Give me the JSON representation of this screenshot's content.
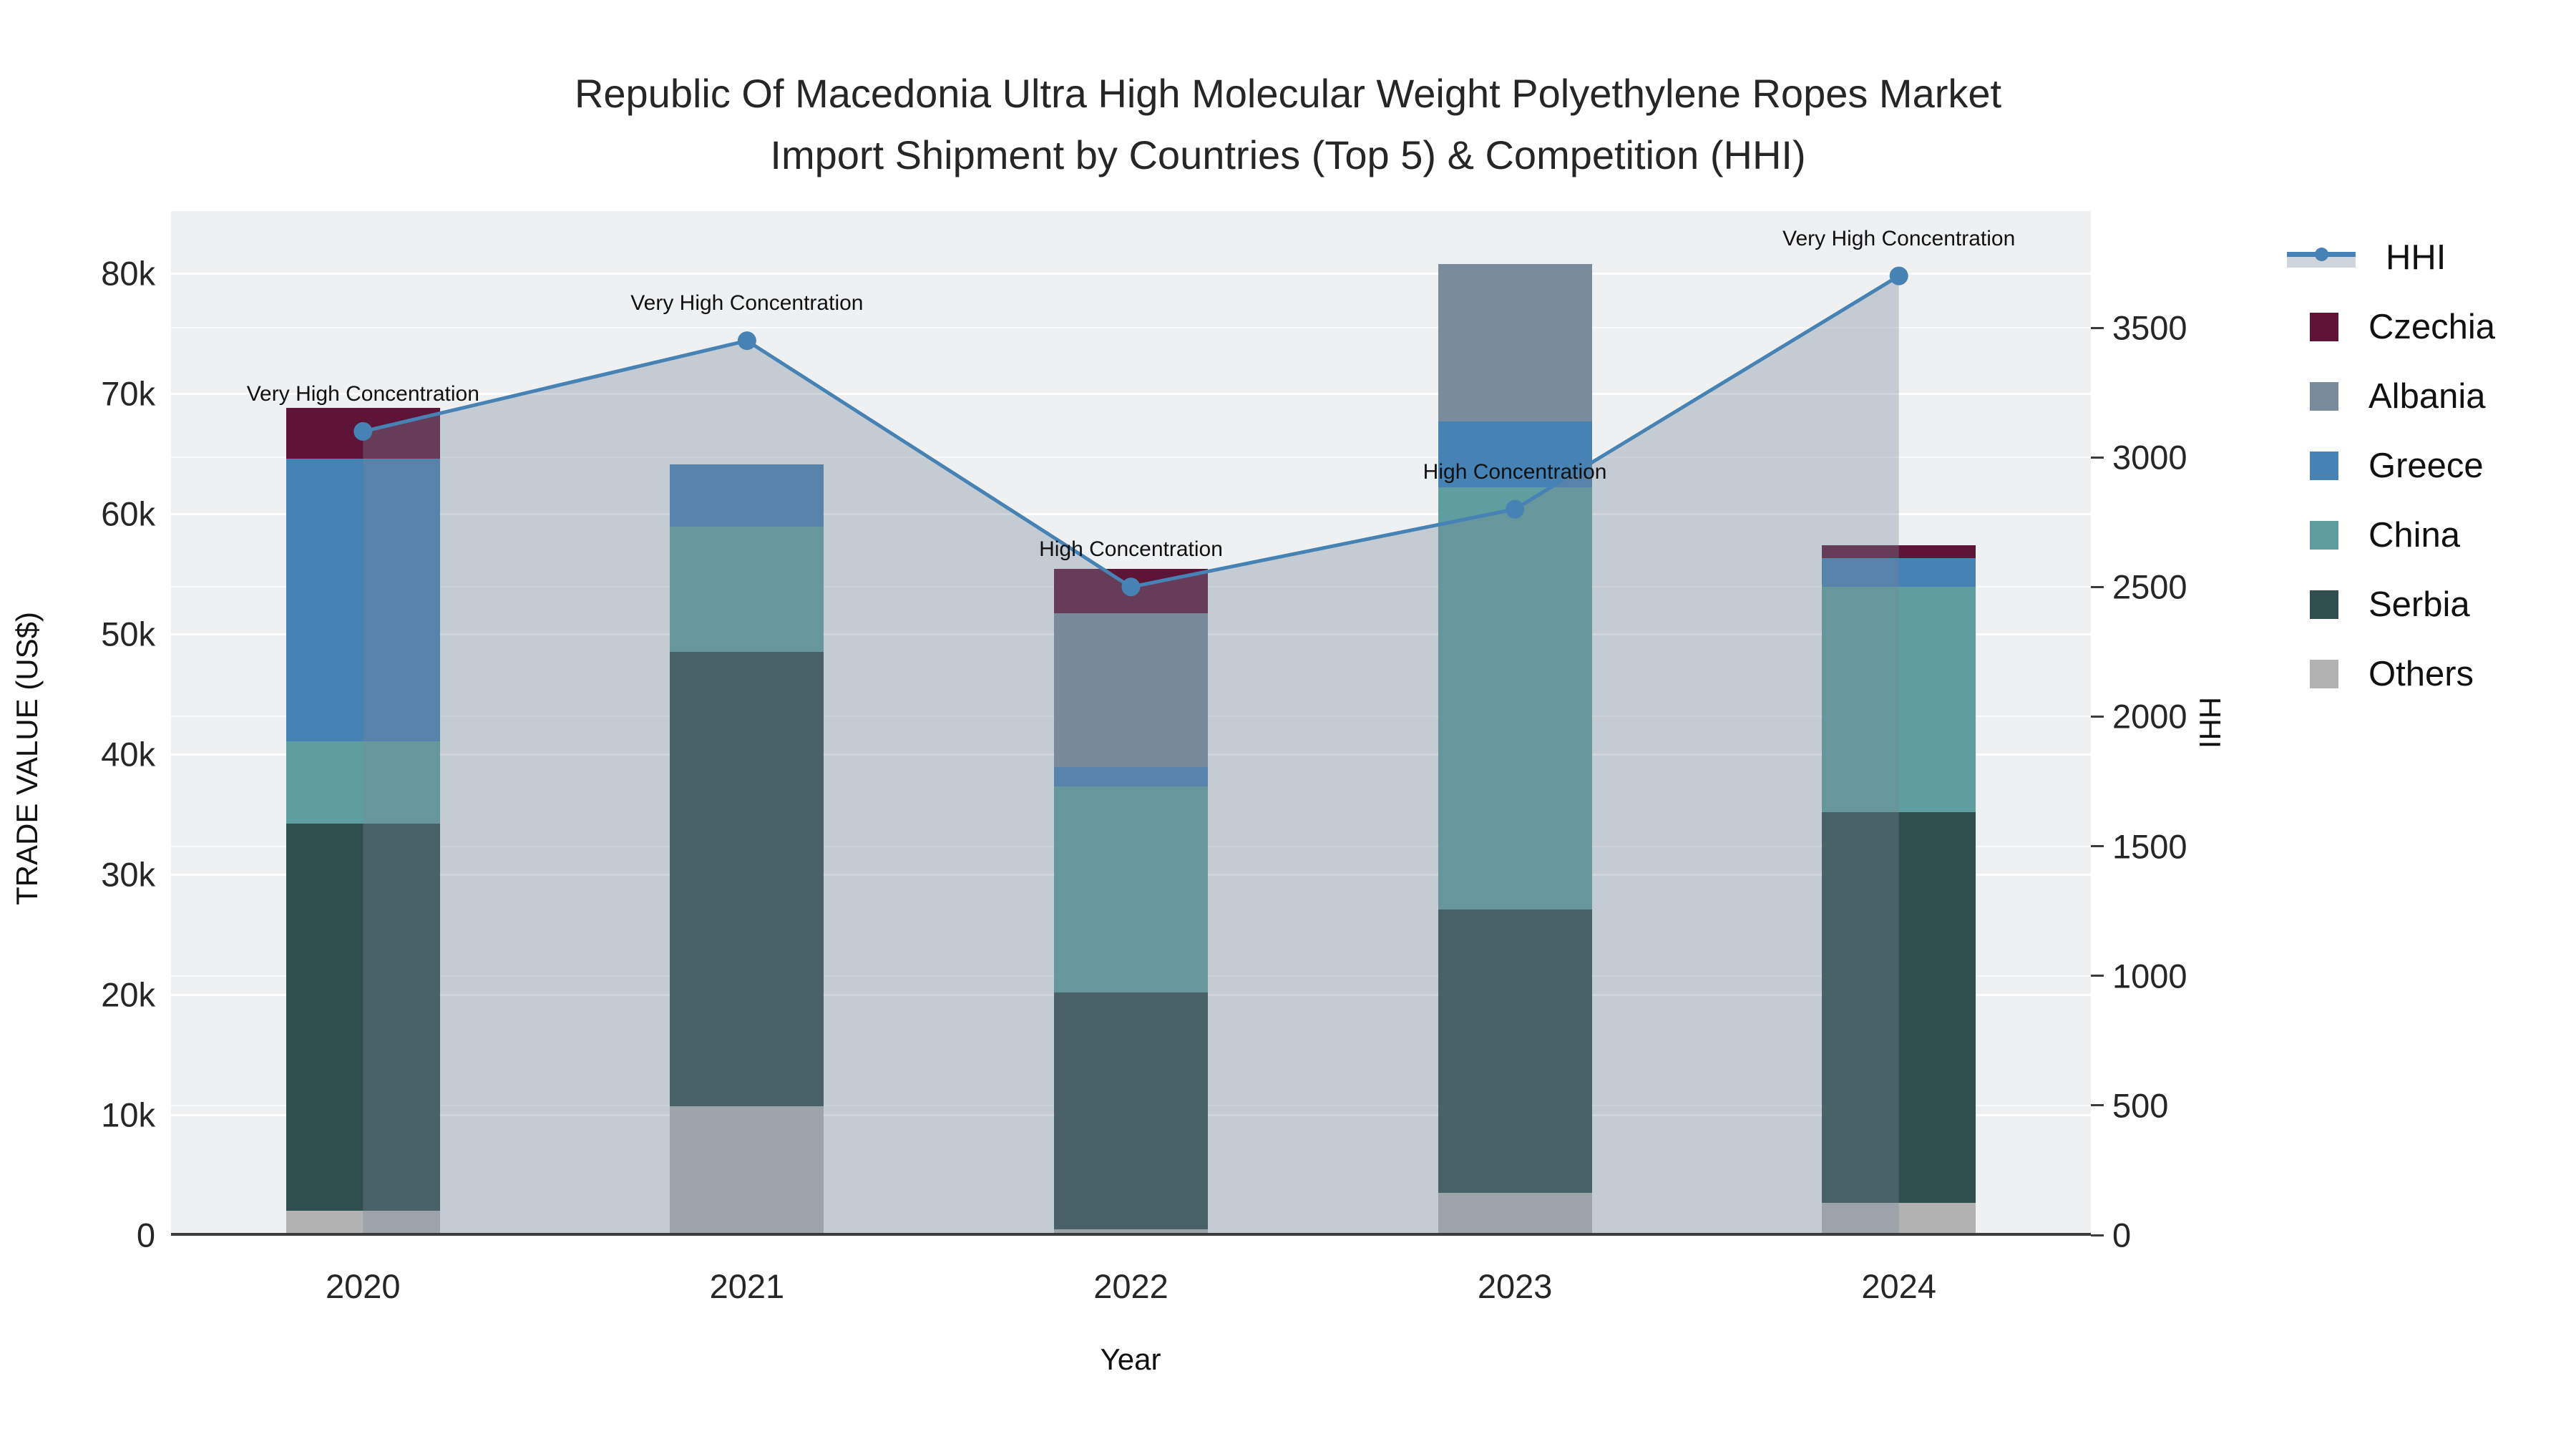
{
  "title": {
    "line1": "Republic Of Macedonia Ultra High Molecular Weight Polyethylene Ropes Market",
    "line2": "Import Shipment by Countries (Top 5) & Competition (HHI)"
  },
  "axes": {
    "x": {
      "title": "Year"
    },
    "y_left": {
      "title": "TRADE VALUE (US$)",
      "tick_labels": [
        "0",
        "10k",
        "20k",
        "30k",
        "40k",
        "50k",
        "60k",
        "70k",
        "80k"
      ],
      "tick_values": [
        0,
        10000,
        20000,
        30000,
        40000,
        50000,
        60000,
        70000,
        80000
      ]
    },
    "y_right": {
      "title": "HHI",
      "tick_labels": [
        "0",
        "500",
        "1000",
        "1500",
        "2000",
        "2500",
        "3000",
        "3500"
      ],
      "tick_values": [
        0,
        500,
        1000,
        1500,
        2000,
        2500,
        3000,
        3500
      ]
    }
  },
  "legend": {
    "items": [
      {
        "label": "HHI",
        "type": "line",
        "color": "#4682b4"
      },
      {
        "label": "Czechia",
        "type": "box",
        "color": "#5e1437"
      },
      {
        "label": "Albania",
        "type": "box",
        "color": "#7a8b9e"
      },
      {
        "label": "Greece",
        "type": "box",
        "color": "#4682b4"
      },
      {
        "label": "China",
        "type": "box",
        "color": "#5f9ea0"
      },
      {
        "label": "Serbia",
        "type": "box",
        "color": "#2f4f4f"
      },
      {
        "label": "Others",
        "type": "box",
        "color": "#b2b2b2"
      }
    ]
  },
  "chart_data": {
    "type": "bar",
    "stacked": true,
    "title": "Republic Of Macedonia Ultra High Molecular Weight Polyethylene Ropes Market Import Shipment by Countries (Top 5) & Competition (HHI)",
    "xlabel": "Year",
    "ylabel": "TRADE VALUE (US$)",
    "y2label": "HHI",
    "categories": [
      "2020",
      "2021",
      "2022",
      "2023",
      "2024"
    ],
    "ylim": [
      0,
      85180
    ],
    "y2lim": [
      0,
      3950
    ],
    "grid": true,
    "legend_position": "right",
    "series": [
      {
        "name": "Others",
        "color": "#b2b2b2",
        "values": [
          2000,
          10700,
          500,
          3500,
          2700
        ]
      },
      {
        "name": "Serbia",
        "color": "#2f4f4f",
        "values": [
          32200,
          37800,
          19700,
          23600,
          32500
        ]
      },
      {
        "name": "China",
        "color": "#5f9ea0",
        "values": [
          6900,
          10400,
          17100,
          35100,
          18700
        ]
      },
      {
        "name": "Greece",
        "color": "#4682b4",
        "values": [
          23500,
          5200,
          1600,
          5500,
          2400
        ]
      },
      {
        "name": "Albania",
        "color": "#7a8b9e",
        "values": [
          0,
          0,
          12800,
          13100,
          0
        ]
      },
      {
        "name": "Czechia",
        "color": "#5e1437",
        "values": [
          4200,
          0,
          3700,
          0,
          1100
        ]
      }
    ],
    "totals": [
      68800,
      64100,
      55400,
      80800,
      57400
    ],
    "line": {
      "name": "HHI",
      "axis": "right",
      "color": "#4682b4",
      "fill_color": "rgba(119,136,153,0.35)",
      "values": [
        3100,
        3450,
        2500,
        2800,
        3700
      ],
      "annotations": [
        "Very High Concentration",
        "Very High Concentration",
        "High Concentration",
        "High Concentration",
        "Very High Concentration"
      ]
    }
  }
}
